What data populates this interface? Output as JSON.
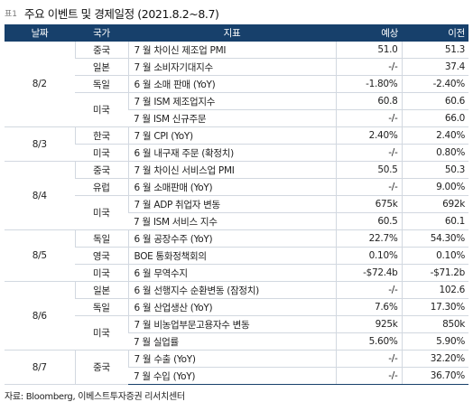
{
  "table_label": "표1",
  "title": "주요 이벤트 및 경제일정 (2021.8.2~8.7)",
  "headers": {
    "date": "날짜",
    "country": "국가",
    "indicator": "지표",
    "forecast": "예상",
    "previous": "이전"
  },
  "rows": [
    {
      "date": "8/2",
      "country": "중국",
      "indicator": "7 월 차이신 제조업 PMI",
      "forecast": "51.0",
      "previous": "51.3"
    },
    {
      "date": "8/2",
      "country": "일본",
      "indicator": "7 월 소비자기대지수",
      "forecast": "-/-",
      "previous": "37.4"
    },
    {
      "date": "8/2",
      "country": "독일",
      "indicator": "6 월 소매 판매 (YoY)",
      "forecast": "-1.80%",
      "previous": "-2.40%"
    },
    {
      "date": "8/2",
      "country": "미국",
      "indicator": "7 월 ISM 제조업지수",
      "forecast": "60.8",
      "previous": "60.6"
    },
    {
      "date": "8/2",
      "country": "미국",
      "indicator": "7 월 ISM 신규주문",
      "forecast": "-/-",
      "previous": "66.0"
    },
    {
      "date": "8/3",
      "country": "한국",
      "indicator": "7 월 CPI (YoY)",
      "forecast": "2.40%",
      "previous": "2.40%"
    },
    {
      "date": "8/3",
      "country": "미국",
      "indicator": "6 월 내구재 주문 (확정치)",
      "forecast": "-/-",
      "previous": "0.80%"
    },
    {
      "date": "8/4",
      "country": "중국",
      "indicator": "7 월 차이신 서비스업 PMI",
      "forecast": "50.5",
      "previous": "50.3"
    },
    {
      "date": "8/4",
      "country": "유럽",
      "indicator": "6 월 소매판매 (YoY)",
      "forecast": "-/-",
      "previous": "9.00%"
    },
    {
      "date": "8/4",
      "country": "미국",
      "indicator": "7 월 ADP 취업자 변동",
      "forecast": "675k",
      "previous": "692k"
    },
    {
      "date": "8/4",
      "country": "미국",
      "indicator": "7 월 ISM 서비스 지수",
      "forecast": "60.5",
      "previous": "60.1"
    },
    {
      "date": "8/5",
      "country": "독일",
      "indicator": "6 월 공장수주 (YoY)",
      "forecast": "22.7%",
      "previous": "54.30%"
    },
    {
      "date": "8/5",
      "country": "영국",
      "indicator": "BOE 통화정책회의",
      "forecast": "0.10%",
      "previous": "0.10%"
    },
    {
      "date": "8/5",
      "country": "미국",
      "indicator": "6 월 무역수지",
      "forecast": "-$72.4b",
      "previous": "-$71.2b"
    },
    {
      "date": "8/6",
      "country": "일본",
      "indicator": "6 월 선행지수 순환변동 (잠정치)",
      "forecast": "-/-",
      "previous": "102.6"
    },
    {
      "date": "8/6",
      "country": "독일",
      "indicator": "6 월 산업생산 (YoY)",
      "forecast": "7.6%",
      "previous": "17.30%"
    },
    {
      "date": "8/6",
      "country": "미국",
      "indicator": "7 월 비농업부문고용자수 변동",
      "forecast": "925k",
      "previous": "850k"
    },
    {
      "date": "8/6",
      "country": "미국",
      "indicator": "7 월 실업률",
      "forecast": "5.60%",
      "previous": "5.90%"
    },
    {
      "date": "8/7",
      "country": "중국",
      "indicator": "7 월 수출 (YoY)",
      "forecast": "-/-",
      "previous": "32.20%"
    },
    {
      "date": "8/7",
      "country": "중국",
      "indicator": "7 월 수입 (YoY)",
      "forecast": "-/-",
      "previous": "36.70%"
    }
  ],
  "source": "자료: Bloomberg, 이베스트투자증권 리서치센터",
  "colors": {
    "header_bg": "#17406b",
    "header_text": "#ffffff",
    "grid": "#d2d8e0"
  }
}
